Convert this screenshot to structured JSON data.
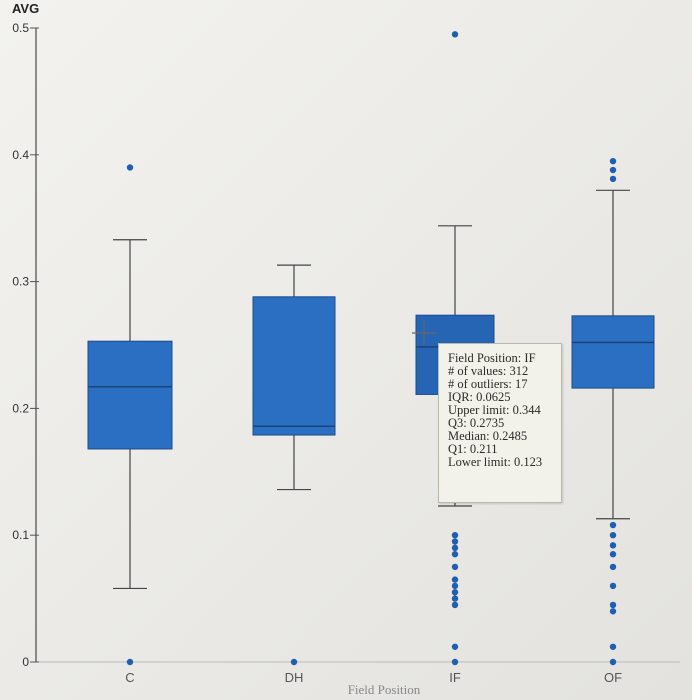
{
  "chart_data": {
    "type": "boxplot",
    "ylabel": "AVG",
    "xlabel": "Field Position",
    "ylim": [
      0,
      0.5
    ],
    "yticks": [
      "0",
      "0.1",
      "0.2",
      "0.3",
      "0.4",
      "0.5"
    ],
    "colors": {
      "box": "#2a6fc2",
      "box_hover": "#2664b4",
      "median": "#1b3f73",
      "whisker": "#444444",
      "outlier": "#1f5fb0"
    },
    "categories": [
      "C",
      "DH",
      "IF",
      "OF"
    ],
    "boxes": [
      {
        "category": "C",
        "lower": 0.058,
        "q1": 0.168,
        "median": 0.217,
        "q3": 0.253,
        "upper": 0.333,
        "outliers": [
          0.39,
          0.0
        ]
      },
      {
        "category": "DH",
        "lower": 0.136,
        "q1": 0.179,
        "median": 0.186,
        "q3": 0.288,
        "upper": 0.313,
        "outliers": [
          0.0
        ]
      },
      {
        "category": "IF",
        "lower": 0.123,
        "q1": 0.211,
        "median": 0.2485,
        "q3": 0.2735,
        "upper": 0.344,
        "outliers": [
          0.495,
          0.1,
          0.095,
          0.09,
          0.085,
          0.075,
          0.065,
          0.06,
          0.055,
          0.05,
          0.045,
          0.012,
          0.0
        ]
      },
      {
        "category": "OF",
        "lower": 0.113,
        "q1": 0.216,
        "median": 0.252,
        "q3": 0.273,
        "upper": 0.372,
        "outliers": [
          0.395,
          0.388,
          0.381,
          0.108,
          0.1,
          0.092,
          0.085,
          0.075,
          0.06,
          0.045,
          0.04,
          0.012,
          0.0
        ]
      }
    ],
    "tooltip": {
      "lines": [
        "Field Position: IF",
        "# of values: 312",
        "# of outliers: 17",
        "IQR: 0.0625",
        "Upper limit: 0.344",
        "Q3: 0.2735",
        "Median: 0.2485",
        "Q1: 0.211",
        "Lower limit: 0.123"
      ]
    }
  }
}
